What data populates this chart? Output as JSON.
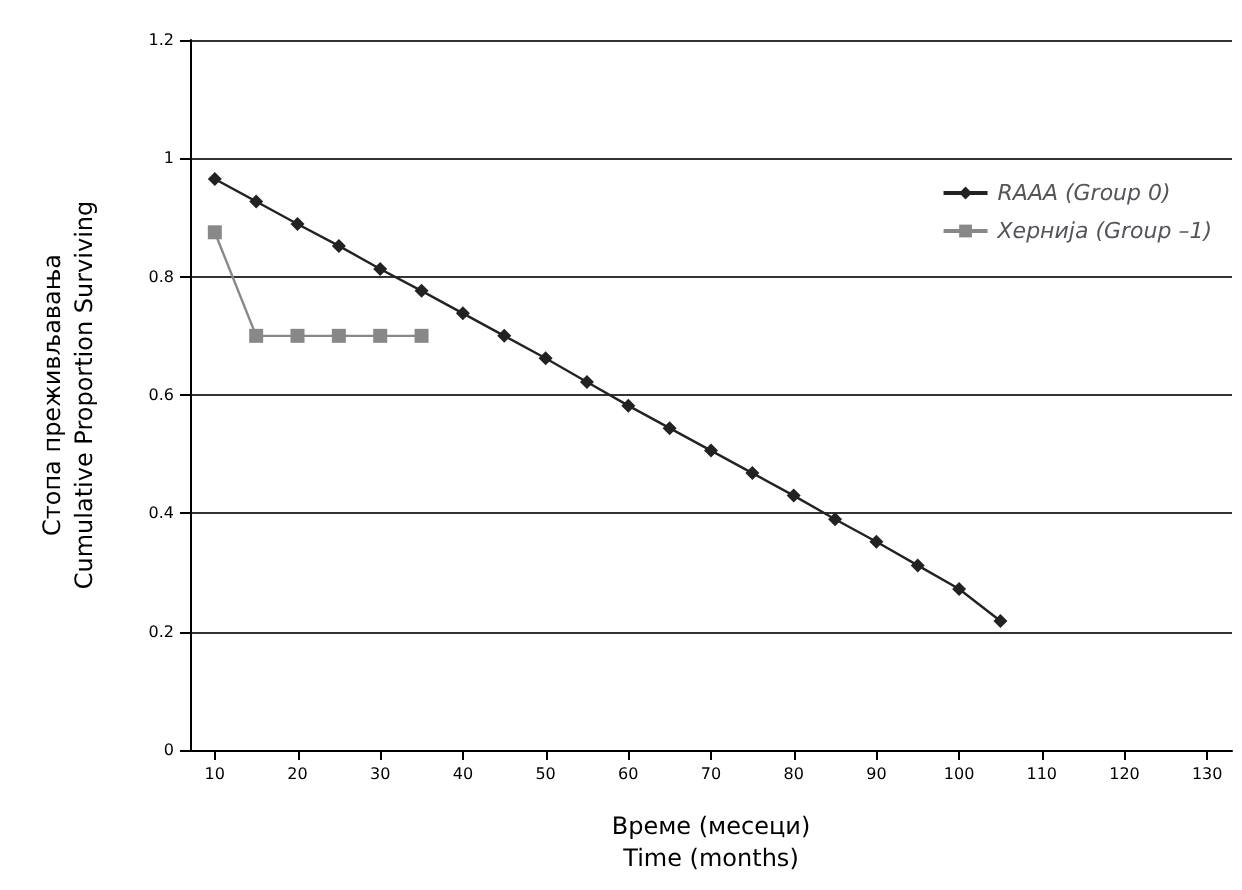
{
  "chart_data": {
    "type": "line",
    "xlabel": "Време (месеци)\nTime (months)",
    "ylabel": "Стопа преживљавања\nCumulative Proportion Surviving",
    "xlim": [
      7,
      133
    ],
    "xticks": [
      10,
      20,
      30,
      40,
      50,
      60,
      70,
      80,
      90,
      100,
      110,
      120,
      130
    ],
    "ylim": [
      0,
      1.2
    ],
    "yticks": [
      0,
      0.2,
      0.4,
      0.6,
      0.8,
      1,
      1.2
    ],
    "grid": "y",
    "legend": "top right",
    "series": [
      {
        "name": "RAAA (Group 0)",
        "color": "#222222",
        "marker": "diamond",
        "x": [
          10,
          15,
          20,
          25,
          30,
          35,
          40,
          45,
          50,
          55,
          60,
          65,
          70,
          75,
          80,
          85,
          90,
          95,
          100,
          105
        ],
        "values": [
          0.965,
          0.927,
          0.889,
          0.852,
          0.813,
          0.776,
          0.738,
          0.7,
          0.662,
          0.622,
          0.582,
          0.544,
          0.506,
          0.468,
          0.43,
          0.39,
          0.352,
          0.312,
          0.272,
          0.218
        ]
      },
      {
        "name": "Хернија (Group –1)",
        "color": "#888888",
        "marker": "square",
        "x": [
          10,
          15,
          20,
          25,
          30,
          35
        ],
        "values": [
          0.875,
          0.7,
          0.7,
          0.7,
          0.7,
          0.7
        ]
      }
    ]
  }
}
